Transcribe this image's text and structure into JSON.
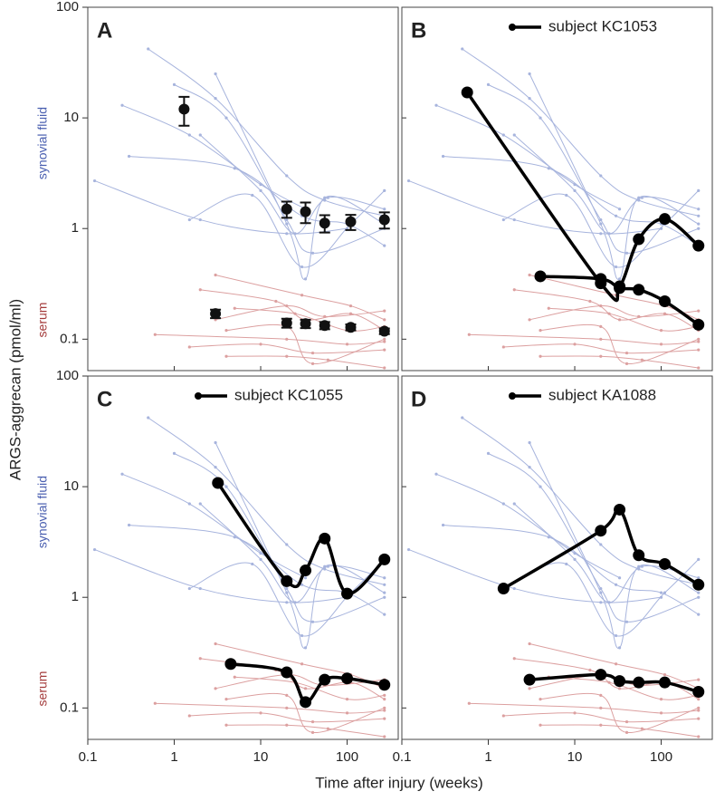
{
  "figure": {
    "ylabel": "ARGS-aggrecan (pmol/ml)",
    "xlabel": "Time after injury (weeks)"
  },
  "cohort": {
    "synovial": {
      "color": "#a7b4dd",
      "lines": [
        {
          "x": [
            0.12,
            2,
            20,
            100
          ],
          "values": [
            2.7,
            1.2,
            0.9,
            1.0
          ]
        },
        {
          "x": [
            0.25,
            1.5,
            10,
            33
          ],
          "values": [
            13,
            7,
            2.5,
            1.5
          ]
        },
        {
          "x": [
            0.5,
            3,
            20,
            55,
            270
          ],
          "values": [
            42,
            15,
            3,
            1.8,
            1.3
          ]
        },
        {
          "x": [
            0.3,
            5,
            30,
            100,
            270
          ],
          "values": [
            4.5,
            3.5,
            1.3,
            1.1,
            0.7
          ]
        },
        {
          "x": [
            1,
            4,
            20,
            40,
            270
          ],
          "values": [
            20,
            10,
            1.2,
            0.6,
            1.0
          ]
        },
        {
          "x": [
            2,
            10,
            25,
            60,
            270
          ],
          "values": [
            7,
            2.2,
            0.9,
            1.9,
            1.5
          ]
        },
        {
          "x": [
            1.5,
            8,
            30,
            110,
            270
          ],
          "values": [
            1.2,
            2,
            0.45,
            1.1,
            2.2
          ]
        },
        {
          "x": [
            3,
            20,
            33,
            55,
            270
          ],
          "values": [
            25,
            1.1,
            0.35,
            1.9,
            1.1
          ]
        }
      ]
    },
    "serum": {
      "color": "#dca0a0",
      "lines": [
        {
          "x": [
            0.6,
            20,
            100,
            270
          ],
          "values": [
            0.11,
            0.1,
            0.09,
            0.095
          ]
        },
        {
          "x": [
            1.5,
            10,
            40,
            270
          ],
          "values": [
            0.085,
            0.09,
            0.075,
            0.08
          ]
        },
        {
          "x": [
            3,
            20,
            55,
            270
          ],
          "values": [
            0.15,
            0.2,
            0.16,
            0.18
          ]
        },
        {
          "x": [
            2,
            15,
            33,
            110,
            270
          ],
          "values": [
            0.28,
            0.22,
            0.15,
            0.17,
            0.12
          ]
        },
        {
          "x": [
            4,
            20,
            60,
            270
          ],
          "values": [
            0.07,
            0.07,
            0.065,
            0.055
          ]
        },
        {
          "x": [
            5,
            25,
            100,
            270
          ],
          "values": [
            0.19,
            0.17,
            0.12,
            0.13
          ]
        },
        {
          "x": [
            3,
            30,
            110,
            270
          ],
          "values": [
            0.38,
            0.25,
            0.2,
            0.15
          ]
        },
        {
          "x": [
            4,
            20,
            40,
            270
          ],
          "values": [
            0.12,
            0.13,
            0.06,
            0.1
          ]
        }
      ]
    }
  },
  "chart_data": [
    {
      "type": "errorbar",
      "label": "A",
      "log": true,
      "xlim": [
        0.1,
        390
      ],
      "ylim": [
        0.052,
        100
      ],
      "xticks": [
        0.1,
        1,
        10,
        100
      ],
      "yticks": [
        100,
        10,
        1,
        0.1
      ],
      "annotations": [
        {
          "text": "synovial fluid",
          "color": "#4a5fb0"
        },
        {
          "text": "serum",
          "color": "#a33a3a"
        }
      ],
      "series": [
        {
          "color": "#111",
          "x": [
            1.3,
            20,
            33,
            55,
            110,
            270
          ],
          "values": [
            12,
            1.5,
            1.42,
            1.12,
            1.15,
            1.2
          ],
          "errors": [
            3.5,
            0.25,
            0.3,
            0.2,
            0.18,
            0.2
          ]
        },
        {
          "color": "#111",
          "x": [
            3,
            20,
            33,
            55,
            110,
            270
          ],
          "values": [
            0.17,
            0.14,
            0.138,
            0.133,
            0.128,
            0.118
          ],
          "errors": [
            0.015,
            0.013,
            0.012,
            0.01,
            0.008,
            0.007
          ]
        }
      ]
    },
    {
      "type": "line",
      "label": "B",
      "log": true,
      "xlim": [
        0.1,
        390
      ],
      "ylim": [
        0.052,
        100
      ],
      "xticks": [
        0.1,
        1,
        10,
        100
      ],
      "yticks": [
        100,
        10,
        1,
        0.1
      ],
      "series": [
        {
          "name": "subject KC1053",
          "color": "#000",
          "x": [
            0.57,
            20,
            33,
            55,
            110,
            270
          ],
          "values": [
            17,
            0.32,
            0.3,
            0.8,
            1.22,
            0.7
          ]
        },
        {
          "color": "#000",
          "x": [
            4,
            20,
            33,
            55,
            110,
            270
          ],
          "values": [
            0.37,
            0.35,
            0.29,
            0.28,
            0.22,
            0.135
          ]
        }
      ]
    },
    {
      "type": "line",
      "label": "C",
      "log": true,
      "xlim": [
        0.1,
        390
      ],
      "ylim": [
        0.052,
        100
      ],
      "xticks": [
        0.1,
        1,
        10,
        100
      ],
      "yticks": [
        100,
        10,
        1,
        0.1
      ],
      "annotations": [
        {
          "text": "synovial fluid",
          "color": "#4a5fb0"
        },
        {
          "text": "serum",
          "color": "#a33a3a"
        }
      ],
      "series": [
        {
          "name": "subject KC1055",
          "color": "#000",
          "x": [
            3.2,
            20,
            33,
            55,
            100,
            270
          ],
          "values": [
            10.8,
            1.4,
            1.75,
            3.4,
            1.08,
            2.2
          ]
        },
        {
          "color": "#000",
          "x": [
            4.5,
            20,
            33,
            55,
            100,
            270
          ],
          "values": [
            0.25,
            0.21,
            0.113,
            0.18,
            0.185,
            0.162
          ]
        }
      ]
    },
    {
      "type": "line",
      "label": "D",
      "log": true,
      "xlim": [
        0.1,
        390
      ],
      "ylim": [
        0.052,
        100
      ],
      "xticks": [
        0.1,
        1,
        10,
        100
      ],
      "yticks": [
        100,
        10,
        1,
        0.1
      ],
      "series": [
        {
          "name": "subject KA1088",
          "color": "#000",
          "x": [
            1.5,
            20,
            33,
            55,
            110,
            270
          ],
          "values": [
            1.2,
            4,
            6.2,
            2.4,
            2,
            1.3
          ]
        },
        {
          "color": "#000",
          "x": [
            3,
            20,
            33,
            55,
            110,
            270
          ],
          "values": [
            0.18,
            0.2,
            0.175,
            0.17,
            0.17,
            0.14
          ]
        }
      ]
    }
  ]
}
